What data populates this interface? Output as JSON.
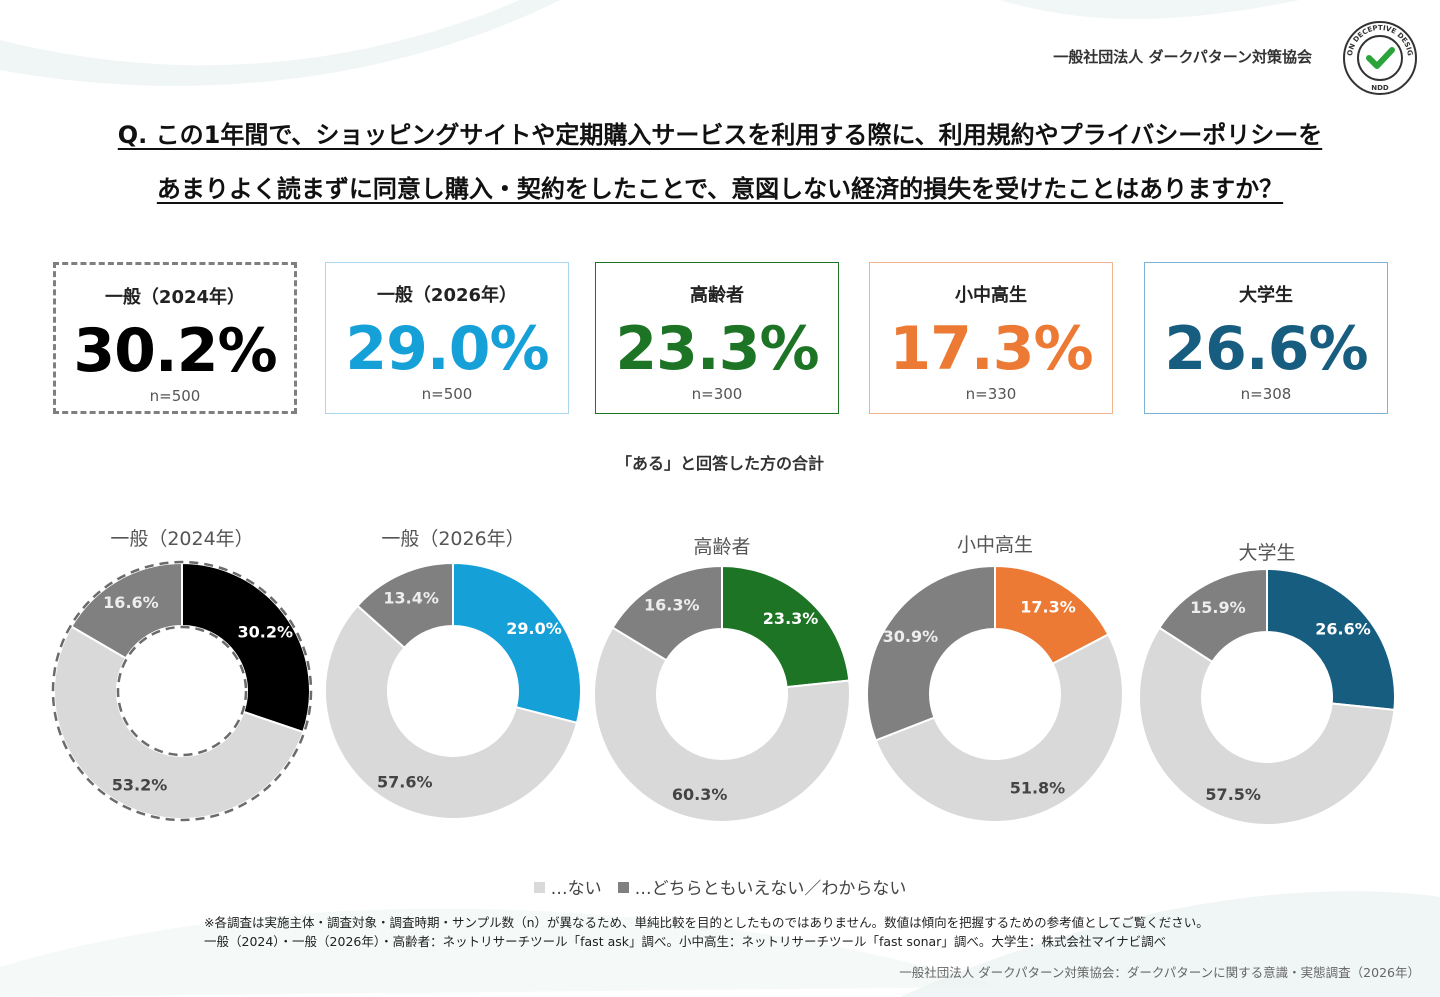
{
  "header": {
    "org": "一般社団法人 ダークパターン対策協会",
    "logo_text_top": "NON DECEPTIVE DESIGN",
    "logo_text_bottom": "NDD",
    "logo_icon": "check-icon"
  },
  "question": {
    "line1": "Q. この1年間で、ショッピングサイトや定期購入サービスを利用する際に、利用規約やプライバシーポリシーを",
    "line2": "あまりよく読まずに同意し購入・契約をしたことで、意図しない経済的損失を受けたことはありますか？"
  },
  "cards": [
    {
      "title": "一般（2024年）",
      "value": "30.2%",
      "n": "n=500",
      "color": "#000000",
      "border": "dashed"
    },
    {
      "title": "一般（2026年）",
      "value": "29.0%",
      "n": "n=500",
      "color": "#16a0d8",
      "border": "#a9d8ee"
    },
    {
      "title": "高齢者",
      "value": "23.3%",
      "n": "n=300",
      "color": "#1c7424",
      "border": "#1c7424"
    },
    {
      "title": "小中高生",
      "value": "17.3%",
      "n": "n=330",
      "color": "#ec7a34",
      "border": "#f2b48e"
    },
    {
      "title": "大学生",
      "value": "26.6%",
      "n": "n=308",
      "color": "#175d80",
      "border": "#7ab3d6"
    }
  ],
  "subtitle": "「ある」と回答した方の合計",
  "chart_data": [
    {
      "type": "pie",
      "title": "一般（2024年）",
      "categories": [
        "ある",
        "ない",
        "どちらともいえない／わからない"
      ],
      "values": [
        30.2,
        53.2,
        16.6
      ],
      "labels": [
        "30.2%",
        "53.2%",
        "16.6%"
      ],
      "colors": [
        "#000000",
        "#d9d9d9",
        "#808080"
      ],
      "outline": "dashed"
    },
    {
      "type": "pie",
      "title": "一般（2026年）",
      "categories": [
        "ある",
        "ない",
        "どちらともいえない／わからない"
      ],
      "values": [
        29.0,
        57.6,
        13.4
      ],
      "labels": [
        "29.0%",
        "57.6%",
        "13.4%"
      ],
      "colors": [
        "#16a0d8",
        "#d9d9d9",
        "#808080"
      ]
    },
    {
      "type": "pie",
      "title": "高齢者",
      "categories": [
        "ある",
        "ない",
        "どちらともいえない／わからない"
      ],
      "values": [
        23.3,
        60.3,
        16.3
      ],
      "labels": [
        "23.3%",
        "60.3%",
        "16.3%"
      ],
      "colors": [
        "#1c7424",
        "#d9d9d9",
        "#808080"
      ]
    },
    {
      "type": "pie",
      "title": "小中高生",
      "categories": [
        "ある",
        "ない",
        "どちらともいえない／わからない"
      ],
      "values": [
        17.3,
        51.8,
        30.9
      ],
      "labels": [
        "17.3%",
        "51.8%",
        "30.9%"
      ],
      "colors": [
        "#ec7a34",
        "#d9d9d9",
        "#808080"
      ]
    },
    {
      "type": "pie",
      "title": "大学生",
      "categories": [
        "ある",
        "ない",
        "どちらともいえない／わからない"
      ],
      "values": [
        26.6,
        57.5,
        15.9
      ],
      "labels": [
        "26.6%",
        "57.5%",
        "15.9%"
      ],
      "colors": [
        "#175d80",
        "#d9d9d9",
        "#808080"
      ]
    }
  ],
  "legend": [
    {
      "label": "…ない",
      "color": "#d9d9d9"
    },
    {
      "label": "…どちらともいえない／わからない",
      "color": "#808080"
    }
  ],
  "notes": {
    "line1": "※各調査は実施主体・調査対象・調査時期・サンプル数（n）が異なるため、単純比較を目的としたものではありません。数値は傾向を把握するための参考値としてご覧ください。",
    "line2": "一般（2024）・一般（2026年）・高齢者：ネットリサーチツール「fast ask」調べ。小中高生：ネットリサーチツール「fast sonar」調べ。大学生：株式会社マイナビ調べ"
  },
  "source": "一般社団法人 ダークパターン対策協会：ダークパターンに関する意識・実態調査（2026年）"
}
